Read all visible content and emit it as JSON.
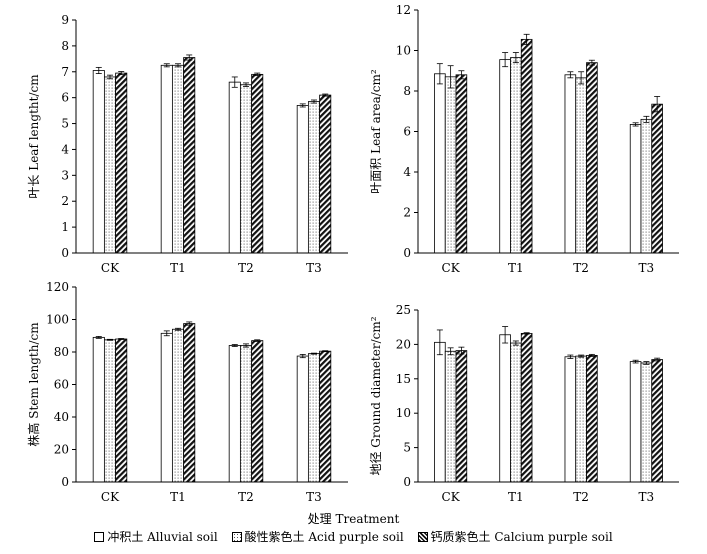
{
  "figure": {
    "xlabel": "处理 Treatment",
    "legend": [
      {
        "name": "冲积土 Alluvial soil",
        "pattern": "empty"
      },
      {
        "name": "酸性紫色土 Acid purple soil",
        "pattern": "dots"
      },
      {
        "name": "钙质紫色土 Calcium purple soil",
        "pattern": "hatch"
      }
    ],
    "colors": {
      "stroke": "#000000",
      "background": "#ffffff"
    }
  },
  "chart_data": [
    {
      "type": "bar",
      "title": "",
      "xlabel": "",
      "ylabel": "叶长 Leaf lengtht/cm",
      "categories": [
        "CK",
        "T1",
        "T2",
        "T3"
      ],
      "ylim": [
        0,
        9
      ],
      "yticks": [
        0,
        1,
        2,
        3,
        4,
        5,
        6,
        7,
        8,
        9
      ],
      "series": [
        {
          "name": "冲积土 Alluvial soil",
          "values": [
            7.05,
            7.25,
            6.6,
            5.7
          ],
          "errors": [
            0.12,
            0.06,
            0.2,
            0.06
          ]
        },
        {
          "name": "酸性紫色土 Acid purple soil",
          "values": [
            6.8,
            7.25,
            6.5,
            5.85
          ],
          "errors": [
            0.07,
            0.06,
            0.07,
            0.06
          ]
        },
        {
          "name": "钙质紫色土 Calcium purple soil",
          "values": [
            6.95,
            7.55,
            6.9,
            6.1
          ],
          "errors": [
            0.06,
            0.1,
            0.05,
            0.04
          ]
        }
      ]
    },
    {
      "type": "bar",
      "title": "",
      "xlabel": "",
      "ylabel": "叶面积 Leaf area/cm²",
      "categories": [
        "CK",
        "T1",
        "T2",
        "T3"
      ],
      "ylim": [
        0,
        12
      ],
      "yticks": [
        0,
        2,
        4,
        6,
        8,
        10,
        12
      ],
      "series": [
        {
          "name": "冲积土 Alluvial soil",
          "values": [
            8.85,
            9.55,
            8.8,
            6.35
          ],
          "errors": [
            0.5,
            0.35,
            0.15,
            0.08
          ]
        },
        {
          "name": "酸性紫色土 Acid purple soil",
          "values": [
            8.7,
            9.65,
            8.65,
            6.6
          ],
          "errors": [
            0.55,
            0.25,
            0.3,
            0.15
          ]
        },
        {
          "name": "钙质紫色土 Calcium purple soil",
          "values": [
            8.8,
            10.55,
            9.4,
            7.35
          ],
          "errors": [
            0.2,
            0.25,
            0.12,
            0.38
          ]
        }
      ]
    },
    {
      "type": "bar",
      "title": "",
      "xlabel": "",
      "ylabel": "株高 Stem length/cm",
      "categories": [
        "CK",
        "T1",
        "T2",
        "T3"
      ],
      "ylim": [
        0,
        120
      ],
      "yticks": [
        0,
        20,
        40,
        60,
        80,
        100,
        120
      ],
      "series": [
        {
          "name": "冲积土 Alluvial soil",
          "values": [
            89,
            91.5,
            84,
            77.5
          ],
          "errors": [
            0.6,
            1.5,
            0.6,
            1.0
          ]
        },
        {
          "name": "酸性紫色土 Acid purple soil",
          "values": [
            87.5,
            94,
            84,
            79
          ],
          "errors": [
            0.3,
            0.6,
            1.0,
            0.3
          ]
        },
        {
          "name": "钙质紫色土 Calcium purple soil",
          "values": [
            88,
            97.5,
            87,
            80.5
          ],
          "errors": [
            0.3,
            1.0,
            0.5,
            0.3
          ]
        }
      ]
    },
    {
      "type": "bar",
      "title": "",
      "xlabel": "",
      "ylabel": "地径 Ground diameter/cm²",
      "categories": [
        "CK",
        "T1",
        "T2",
        "T3"
      ],
      "ylim": [
        0,
        25
      ],
      "yticks": [
        0,
        5,
        10,
        15,
        20,
        25
      ],
      "series": [
        {
          "name": "冲积土 Alluvial soil",
          "values": [
            20.3,
            21.4,
            18.2,
            17.5
          ],
          "errors": [
            1.8,
            1.2,
            0.25,
            0.2
          ]
        },
        {
          "name": "酸性紫色土 Acid purple soil",
          "values": [
            19.0,
            20.2,
            18.3,
            17.3
          ],
          "errors": [
            0.5,
            0.3,
            0.15,
            0.2
          ]
        },
        {
          "name": "钙质紫色土 Calcium purple soil",
          "values": [
            19.1,
            21.6,
            18.4,
            17.8
          ],
          "errors": [
            0.5,
            0.1,
            0.15,
            0.2
          ]
        }
      ]
    }
  ]
}
